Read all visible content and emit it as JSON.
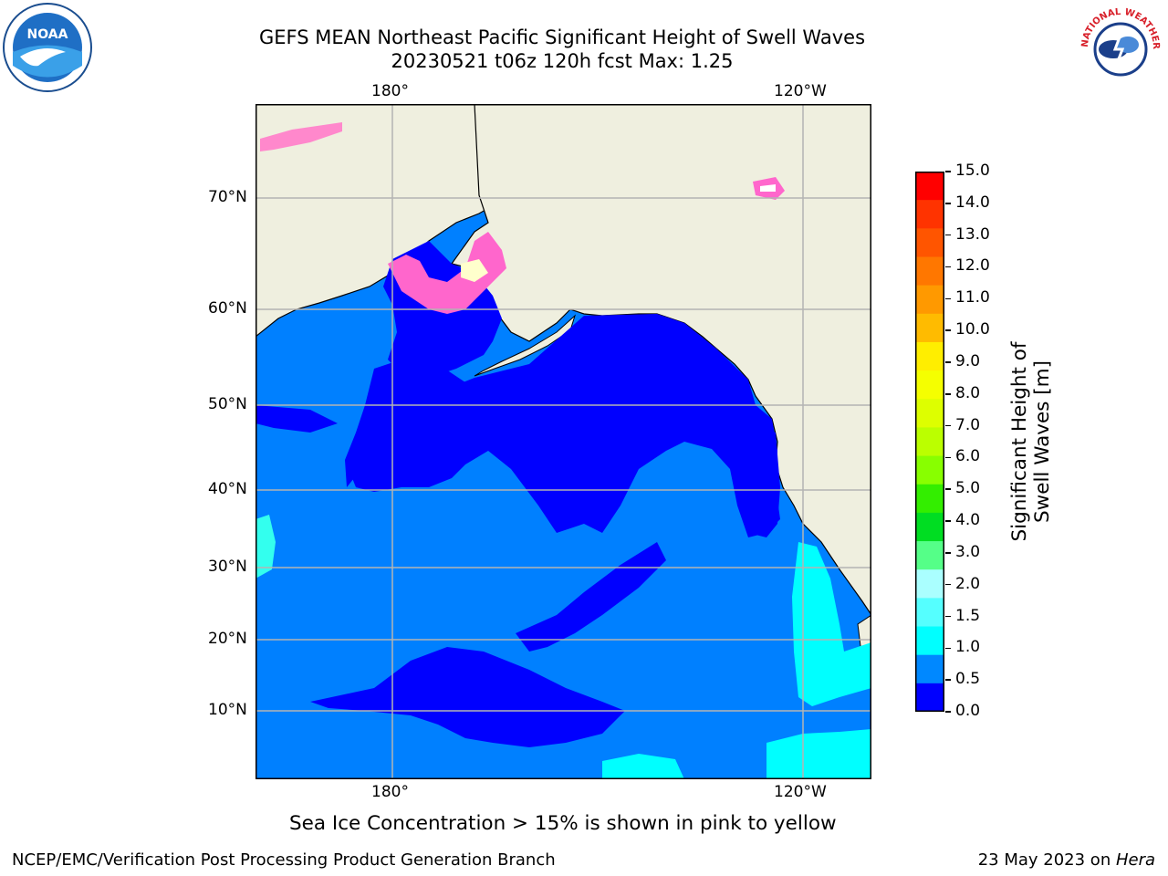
{
  "title": {
    "line1": "GEFS MEAN Northeast Pacific Significant Height of Swell Waves",
    "line2": "20230521 t06z 120h fcst   Max: 1.25"
  },
  "logos": {
    "left": "NOAA",
    "right": "NATIONAL WEATHER SERVICE"
  },
  "map": {
    "lon_labels": [
      "180°",
      "120°W"
    ],
    "lat_labels": [
      "70°N",
      "60°N",
      "50°N",
      "40°N",
      "30°N",
      "20°N",
      "10°N"
    ]
  },
  "colorbar": {
    "label": "Significant Height of Swell Waves [m]",
    "ticks": [
      "15.0",
      "14.0",
      "13.0",
      "12.0",
      "11.0",
      "10.0",
      "9.0",
      "8.0",
      "7.0",
      "6.0",
      "5.0",
      "4.0",
      "3.0",
      "2.0",
      "1.5",
      "1.0",
      "0.5",
      "0.0"
    ],
    "colors_top_to_bottom": [
      "#ff0000",
      "#ff3300",
      "#ff5500",
      "#ff7700",
      "#ff9900",
      "#ffbb00",
      "#ffee00",
      "#f5ff00",
      "#ddff00",
      "#bbff00",
      "#88ff00",
      "#33ee00",
      "#00dd22",
      "#55ff88",
      "#aaffff",
      "#55ffff",
      "#00ffff",
      "#0088ff",
      "#0000ff"
    ]
  },
  "caption": "Sea Ice Concentration > 15% is shown in pink to yellow",
  "footer": {
    "left": "NCEP/EMC/Verification Post Processing Product Generation Branch",
    "right_prefix": "23 May 2023 on ",
    "right_host": "Hera"
  }
}
